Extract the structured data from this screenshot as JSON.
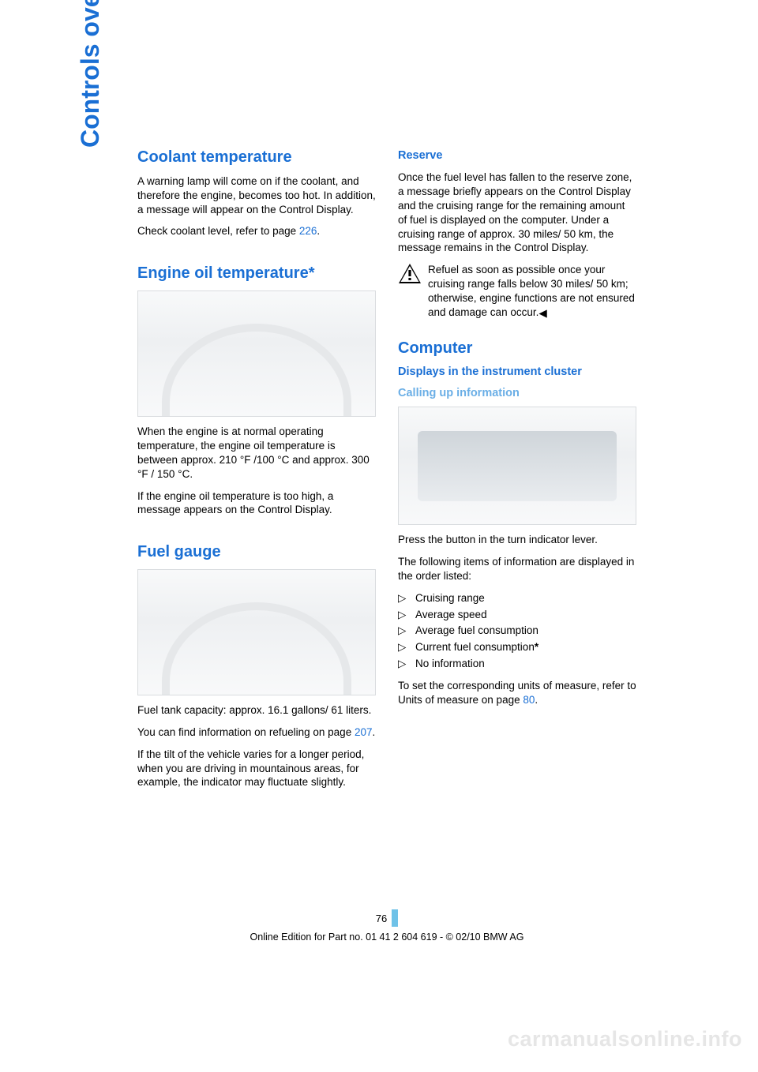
{
  "sideTab": "Controls overview",
  "colors": {
    "heading": "#1a6fd4",
    "subheading": "#6aaee6",
    "link": "#1a6fd4",
    "watermark": "#e6e6e6",
    "pagenum_bar": "#6fc2e8"
  },
  "left": {
    "coolant": {
      "title": "Coolant temperature",
      "p1": "A warning lamp will come on if the coolant, and therefore the engine, becomes too hot. In addition, a message will appear on the Control Display.",
      "p2_pre": "Check coolant level, refer to page ",
      "p2_link": "226",
      "p2_post": "."
    },
    "engineOil": {
      "title": "Engine oil temperature*",
      "p1": "When the engine is at normal operating temperature, the engine oil temperature is between approx. 210 °F /100 °C and approx. 300 °F / 150 °C.",
      "p2": "If the engine oil temperature is too high, a message appears on the Control Display."
    },
    "fuelGauge": {
      "title": "Fuel gauge",
      "p1": "Fuel tank capacity: approx. 16.1 gallons/ 61 liters.",
      "p2_pre": "You can find information on refueling on page ",
      "p2_link": "207",
      "p2_post": ".",
      "p3": "If the tilt of the vehicle varies for a longer period, when you are driving in mountainous areas, for example, the indicator may fluctuate slightly."
    }
  },
  "right": {
    "reserve": {
      "title": "Reserve",
      "p1": "Once the fuel level has fallen to the reserve zone, a message briefly appears on the Control Display and the cruising range for the remaining amount of fuel is displayed on the computer. Under a cruising range of approx. 30 miles/ 50 km, the message remains in the Control Display.",
      "warning": "Refuel as soon as possible once your cruising range falls below 30 miles/ 50 km; otherwise, engine functions are not ensured and damage can occur."
    },
    "computer": {
      "title": "Computer",
      "subtitle": "Displays in the instrument cluster",
      "subheading": "Calling up information",
      "p1": "Press the button in the turn indicator lever.",
      "p2": "The following items of information are displayed in the order listed:",
      "bullets": [
        {
          "text": "Cruising range",
          "star": false
        },
        {
          "text": "Average speed",
          "star": false
        },
        {
          "text": "Average fuel consumption",
          "star": false
        },
        {
          "text": "Current fuel consumption",
          "star": true
        },
        {
          "text": "No information",
          "star": false
        }
      ],
      "p3_pre": "To set the corresponding units of measure, refer to Units of measure on page ",
      "p3_link": "80",
      "p3_post": "."
    }
  },
  "footer": {
    "pageNumber": "76",
    "line": "Online Edition for Part no. 01 41 2 604 619 - © 02/10 BMW AG"
  },
  "watermark": "carmanualsonline.info"
}
